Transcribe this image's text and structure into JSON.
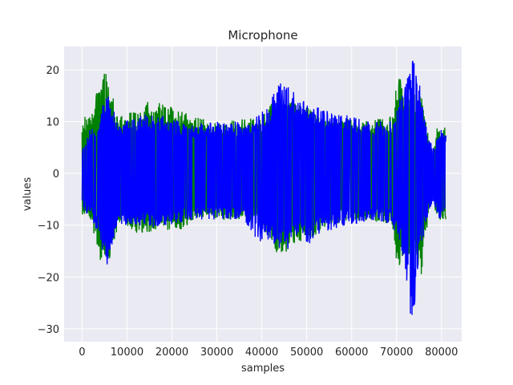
{
  "chart_data": {
    "type": "line",
    "title": "Microphone",
    "xlabel": "samples",
    "ylabel": "values",
    "xlim": [
      -4000,
      84500
    ],
    "ylim": [
      -32.5,
      24.5
    ],
    "grid": true,
    "style": "seaborn-darkgrid",
    "x_ticks": [
      0,
      10000,
      20000,
      30000,
      40000,
      50000,
      60000,
      70000,
      80000
    ],
    "x_tick_labels": [
      "0",
      "10000",
      "20000",
      "30000",
      "40000",
      "50000",
      "60000",
      "70000",
      "80000"
    ],
    "y_ticks": [
      -30,
      -20,
      -10,
      0,
      10,
      20
    ],
    "y_tick_labels": [
      "−30",
      "−20",
      "−10",
      "0",
      "10",
      "20"
    ],
    "series": [
      {
        "color": "#008000",
        "x_range": [
          0,
          81000
        ],
        "envelope": [
          {
            "x": 0,
            "max": 11,
            "min": -9.5
          },
          {
            "x": 2000,
            "max": 11,
            "min": -9
          },
          {
            "x": 3800,
            "max": 18,
            "min": -17
          },
          {
            "x": 4500,
            "max": 20,
            "min": -19.5
          },
          {
            "x": 6000,
            "max": 19,
            "min": -18.5
          },
          {
            "x": 7500,
            "max": 12,
            "min": -12
          },
          {
            "x": 9000,
            "max": 11,
            "min": -9.5
          },
          {
            "x": 11000,
            "max": 12,
            "min": -11
          },
          {
            "x": 13000,
            "max": 13,
            "min": -12
          },
          {
            "x": 16000,
            "max": 14.5,
            "min": -11
          },
          {
            "x": 19000,
            "max": 13,
            "min": -11
          },
          {
            "x": 22000,
            "max": 12.5,
            "min": -11
          },
          {
            "x": 25000,
            "max": 11,
            "min": -9
          },
          {
            "x": 30000,
            "max": 10,
            "min": -9
          },
          {
            "x": 36000,
            "max": 10.5,
            "min": -9
          },
          {
            "x": 40000,
            "max": 11,
            "min": -10.5
          },
          {
            "x": 42000,
            "max": 14,
            "min": -13
          },
          {
            "x": 44000,
            "max": 16,
            "min": -16.5
          },
          {
            "x": 46000,
            "max": 15,
            "min": -15
          },
          {
            "x": 49000,
            "max": 14,
            "min": -13
          },
          {
            "x": 52000,
            "max": 12,
            "min": -12
          },
          {
            "x": 55000,
            "max": 11,
            "min": -10
          },
          {
            "x": 60000,
            "max": 10.5,
            "min": -9.5
          },
          {
            "x": 65000,
            "max": 10.5,
            "min": -9
          },
          {
            "x": 69000,
            "max": 11,
            "min": -10
          },
          {
            "x": 70500,
            "max": 20.5,
            "min": -21
          },
          {
            "x": 72000,
            "max": 16,
            "min": -16
          },
          {
            "x": 74000,
            "max": 16,
            "min": -16
          },
          {
            "x": 75500,
            "max": 15,
            "min": -20
          },
          {
            "x": 77000,
            "max": 8,
            "min": -9
          },
          {
            "x": 78000,
            "max": 3,
            "min": -4
          },
          {
            "x": 79000,
            "max": 9,
            "min": -9
          },
          {
            "x": 81000,
            "max": 9,
            "min": -9
          }
        ]
      },
      {
        "color": "#0000ff",
        "x_range": [
          0,
          81000
        ],
        "envelope": [
          {
            "x": 0,
            "max": 5,
            "min": -7
          },
          {
            "x": 2000,
            "max": 9,
            "min": -8.5
          },
          {
            "x": 3800,
            "max": 11,
            "min": -12
          },
          {
            "x": 5000,
            "max": 14,
            "min": -17
          },
          {
            "x": 6000,
            "max": 17,
            "min": -18
          },
          {
            "x": 7500,
            "max": 11,
            "min": -11
          },
          {
            "x": 9000,
            "max": 10,
            "min": -10
          },
          {
            "x": 12000,
            "max": 11,
            "min": -10
          },
          {
            "x": 16000,
            "max": 12,
            "min": -10.5
          },
          {
            "x": 20000,
            "max": 10.5,
            "min": -10
          },
          {
            "x": 25000,
            "max": 9.5,
            "min": -9
          },
          {
            "x": 30000,
            "max": 10,
            "min": -9
          },
          {
            "x": 36000,
            "max": 10,
            "min": -9
          },
          {
            "x": 39000,
            "max": 11,
            "min": -13
          },
          {
            "x": 42000,
            "max": 14,
            "min": -14
          },
          {
            "x": 43500,
            "max": 18,
            "min": -14.5
          },
          {
            "x": 45500,
            "max": 17,
            "min": -15
          },
          {
            "x": 48000,
            "max": 15,
            "min": -12
          },
          {
            "x": 50000,
            "max": 14,
            "min": -14.5
          },
          {
            "x": 52000,
            "max": 13,
            "min": -12
          },
          {
            "x": 55000,
            "max": 12,
            "min": -11
          },
          {
            "x": 60000,
            "max": 11,
            "min": -10
          },
          {
            "x": 65000,
            "max": 10,
            "min": -9
          },
          {
            "x": 69000,
            "max": 10.5,
            "min": -10
          },
          {
            "x": 71000,
            "max": 15,
            "min": -14
          },
          {
            "x": 72500,
            "max": 20,
            "min": -24
          },
          {
            "x": 73500,
            "max": 22.5,
            "min": -30
          },
          {
            "x": 75000,
            "max": 18,
            "min": -16
          },
          {
            "x": 77000,
            "max": 7,
            "min": -8
          },
          {
            "x": 78500,
            "max": 5,
            "min": -6
          },
          {
            "x": 79500,
            "max": 9,
            "min": -11
          },
          {
            "x": 81000,
            "max": 8,
            "min": -8
          }
        ]
      }
    ]
  }
}
